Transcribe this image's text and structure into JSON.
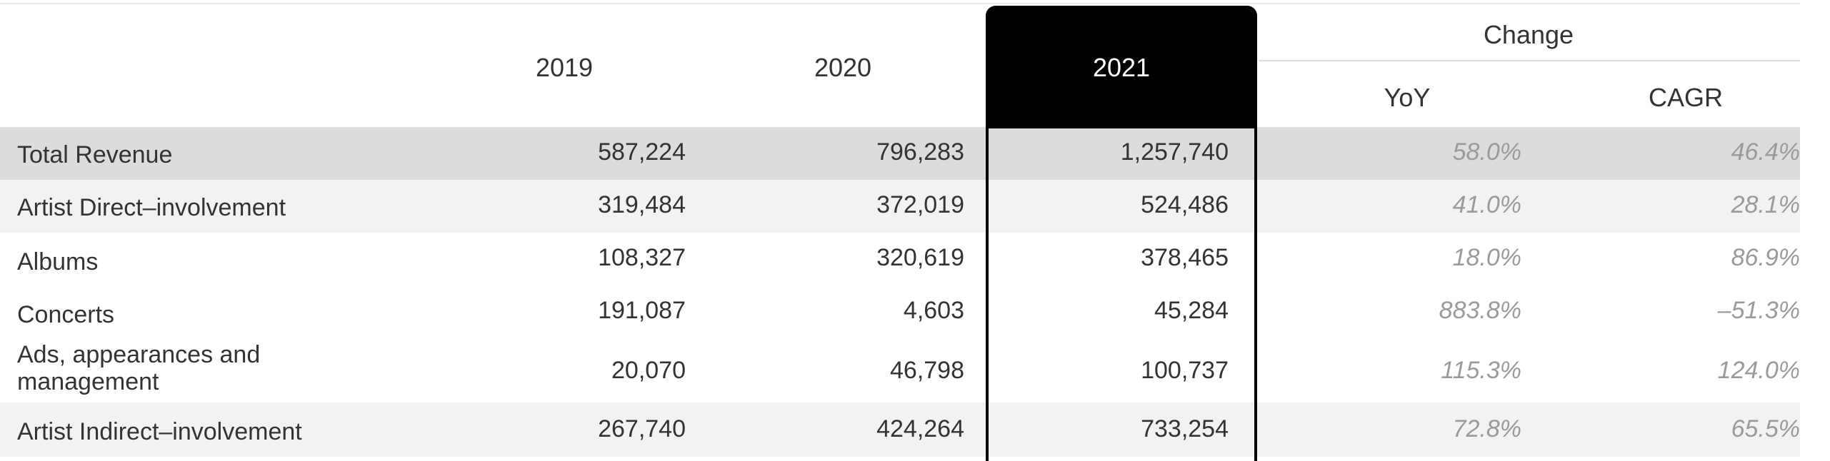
{
  "header": {
    "years": [
      "2019",
      "2020",
      "2021"
    ],
    "change_label": "Change",
    "yoy_label": "YoY",
    "cagr_label": "CAGR"
  },
  "rows": [
    {
      "label": "Total Revenue",
      "y2019": "587,224",
      "y2020": "796,283",
      "y2021": "1,257,740",
      "yoy": "58.0%",
      "cagr": "46.4%"
    },
    {
      "label": "Artist Direct–involvement",
      "y2019": "319,484",
      "y2020": "372,019",
      "y2021": "524,486",
      "yoy": "41.0%",
      "cagr": "28.1%"
    },
    {
      "label": "Albums",
      "y2019": "108,327",
      "y2020": "320,619",
      "y2021": "378,465",
      "yoy": "18.0%",
      "cagr": "86.9%"
    },
    {
      "label": "Concerts",
      "y2019": "191,087",
      "y2020": "4,603",
      "y2021": "45,284",
      "yoy": "883.8%",
      "cagr": "–51.3%"
    },
    {
      "label": "Ads, appearances and management",
      "y2019": "20,070",
      "y2020": "46,798",
      "y2021": "100,737",
      "yoy": "115.3%",
      "cagr": "124.0%"
    },
    {
      "label": "Artist Indirect–involvement",
      "y2019": "267,740",
      "y2020": "424,264",
      "y2021": "733,254",
      "yoy": "72.8%",
      "cagr": "65.5%"
    }
  ],
  "colors": {
    "highlight": "#000000",
    "row_shade_dark": "#dcdcdc",
    "row_shade_light": "#f2f2f2",
    "percent_text": "#9a9a9a"
  }
}
